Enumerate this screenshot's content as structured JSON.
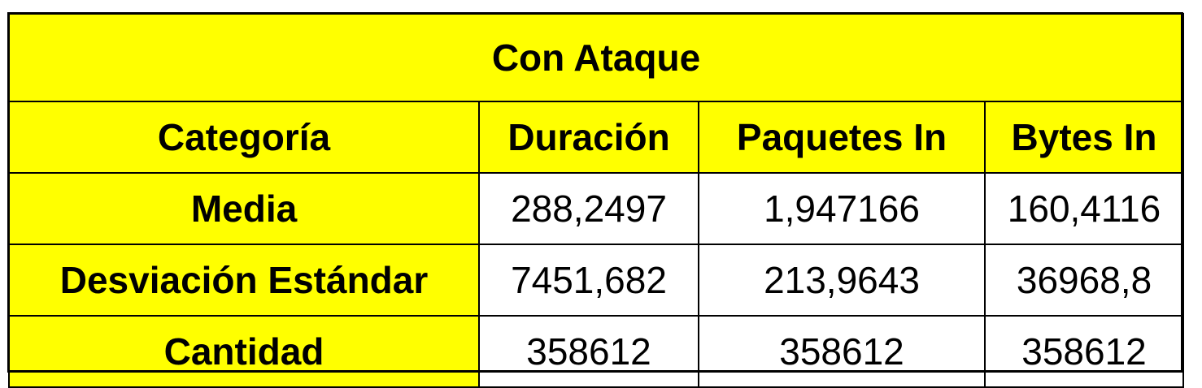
{
  "table": {
    "title": "Con Ataque",
    "headers": [
      "Categoría",
      "Duración",
      "Paquetes In",
      "Bytes In"
    ],
    "rows": [
      {
        "label": "Media",
        "values": [
          "288,2497",
          "1,947166",
          "160,4116"
        ]
      },
      {
        "label": "Desviación Estándar",
        "values": [
          "7451,682",
          "213,9643",
          "36968,8"
        ]
      },
      {
        "label": "Cantidad",
        "values": [
          "358612",
          "358612",
          "358612"
        ]
      }
    ]
  },
  "colors": {
    "header_fill": "#ffff00",
    "value_fill": "#ffffff",
    "border": "#000000",
    "text": "#000000"
  }
}
